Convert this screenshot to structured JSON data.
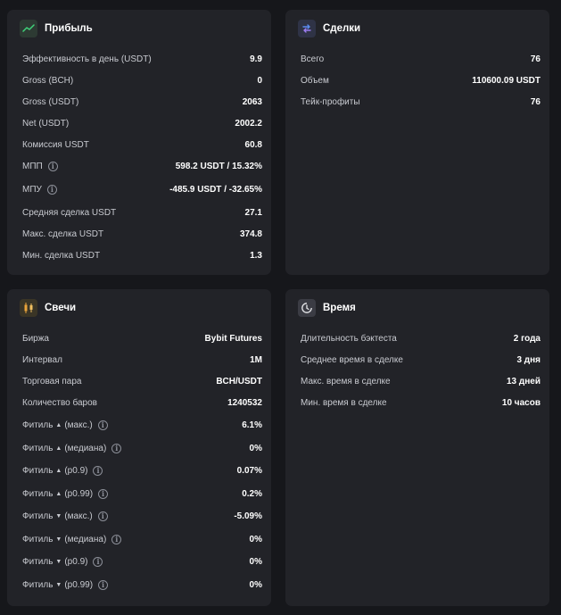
{
  "profit": {
    "title": "Прибыль",
    "icon": "trend-chart-icon",
    "rows": [
      {
        "label": "Эффективность в день (USDT)",
        "value": "9.9"
      },
      {
        "label": "Gross (BCH)",
        "value": "0"
      },
      {
        "label": "Gross (USDT)",
        "value": "2063"
      },
      {
        "label": "Net (USDT)",
        "value": "2002.2"
      },
      {
        "label": "Комиссия USDT",
        "value": "60.8"
      },
      {
        "label": "МПП",
        "value": "598.2 USDT / 15.32%",
        "info": true
      },
      {
        "label": "МПУ",
        "value": "-485.9 USDT / -32.65%",
        "info": true
      },
      {
        "label": "Средняя сделка USDT",
        "value": "27.1"
      },
      {
        "label": "Макс. сделка USDT",
        "value": "374.8"
      },
      {
        "label": "Мин. сделка USDT",
        "value": "1.3"
      }
    ]
  },
  "deals": {
    "title": "Сделки",
    "icon": "swap-arrows-icon",
    "rows": [
      {
        "label": "Всего",
        "value": "76"
      },
      {
        "label": "Объем",
        "value": "110600.09 USDT"
      },
      {
        "label": "Тейк-профиты",
        "value": "76"
      }
    ]
  },
  "candles": {
    "title": "Свечи",
    "icon": "candlestick-icon",
    "rows": [
      {
        "label": "Биржа",
        "value": "Bybit Futures"
      },
      {
        "label": "Интервал",
        "value": "1M"
      },
      {
        "label": "Торговая пара",
        "value": "BCH/USDT"
      },
      {
        "label": "Количество баров",
        "value": "1240532"
      },
      {
        "label_pre": "Фитиль",
        "arrow": "up",
        "label_post": "(макс.)",
        "value": "6.1%",
        "info": true
      },
      {
        "label_pre": "Фитиль",
        "arrow": "up",
        "label_post": "(медиана)",
        "value": "0%",
        "info": true
      },
      {
        "label_pre": "Фитиль",
        "arrow": "up",
        "label_post": "(p0.9)",
        "value": "0.07%",
        "info": true
      },
      {
        "label_pre": "Фитиль",
        "arrow": "up",
        "label_post": "(p0.99)",
        "value": "0.2%",
        "info": true
      },
      {
        "label_pre": "Фитиль",
        "arrow": "down",
        "label_post": "(макс.)",
        "value": "-5.09%",
        "info": true
      },
      {
        "label_pre": "Фитиль",
        "arrow": "down",
        "label_post": "(медиана)",
        "value": "0%",
        "info": true
      },
      {
        "label_pre": "Фитиль",
        "arrow": "down",
        "label_post": "(p0.9)",
        "value": "0%",
        "info": true
      },
      {
        "label_pre": "Фитиль",
        "arrow": "down",
        "label_post": "(p0.99)",
        "value": "0%",
        "info": true
      }
    ]
  },
  "time": {
    "title": "Время",
    "icon": "clock-icon",
    "rows": [
      {
        "label": "Длительность бэктеста",
        "value": "2 года"
      },
      {
        "label": "Среднее время в сделке",
        "value": "3 дня"
      },
      {
        "label": "Макс. время в сделке",
        "value": "13 дней"
      },
      {
        "label": "Мин. время в сделке",
        "value": "10 часов"
      }
    ]
  },
  "info_icon_glyph": "i",
  "arrow_up_glyph": "▲",
  "arrow_down_glyph": "▼"
}
